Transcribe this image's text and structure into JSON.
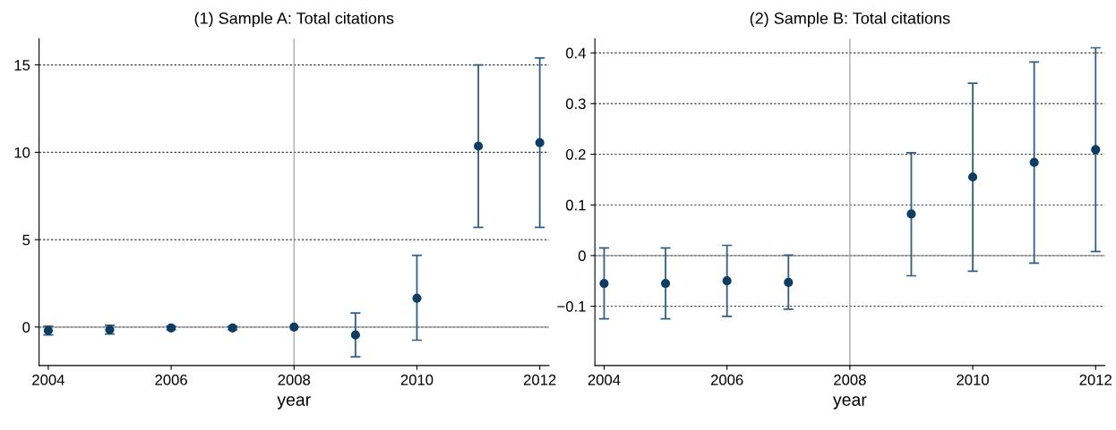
{
  "chart_data": [
    {
      "type": "scatter",
      "title": "(1) Sample A: Total citations",
      "xlabel": "year",
      "x": [
        2004,
        2005,
        2006,
        2007,
        2008,
        2009,
        2010,
        2011,
        2012
      ],
      "series": [
        {
          "color": "#0d3d63",
          "values": [
            -0.2,
            -0.15,
            -0.05,
            -0.05,
            0,
            -0.45,
            1.65,
            10.35,
            10.55
          ],
          "errors": [
            [
              -0.45,
              0.05
            ],
            [
              -0.4,
              0.1
            ],
            [
              -0.15,
              0.05
            ],
            [
              -0.15,
              0.05
            ],
            null,
            [
              -1.7,
              0.8
            ],
            [
              -0.75,
              4.1
            ],
            [
              5.7,
              15
            ],
            [
              5.7,
              15.4
            ]
          ]
        }
      ],
      "xlim": [
        2003.85,
        2012.15
      ],
      "xticks": [
        2004,
        2006,
        2008,
        2010,
        2012
      ],
      "ylim": [
        -2.2,
        16.5
      ],
      "yticks": [
        0,
        5,
        10,
        15
      ],
      "grid": "y",
      "marker": "circle",
      "ref_lines": [
        {
          "axis": "x",
          "value": 2008,
          "color": "#aaaaaa"
        },
        {
          "axis": "y",
          "value": 0,
          "color": "#999999"
        }
      ]
    },
    {
      "type": "scatter",
      "title": "(2) Sample B: Total citations",
      "xlabel": "year",
      "x": [
        2004,
        2005,
        2006,
        2007,
        2008,
        2009,
        2010,
        2011,
        2012
      ],
      "series": [
        {
          "color": "#0d3d63",
          "values": [
            -0.055,
            -0.055,
            -0.05,
            -0.053,
            null,
            0.082,
            0.155,
            0.184,
            0.209
          ],
          "errors": [
            [
              -0.125,
              0.015
            ],
            [
              -0.125,
              0.015
            ],
            [
              -0.12,
              0.02
            ],
            [
              -0.106,
              0.001
            ],
            null,
            [
              -0.04,
              0.203
            ],
            [
              -0.031,
              0.34
            ],
            [
              -0.015,
              0.382
            ],
            [
              0.008,
              0.41
            ]
          ]
        }
      ],
      "xlim": [
        2003.85,
        2012.15
      ],
      "xticks": [
        2004,
        2006,
        2008,
        2010,
        2012
      ],
      "ylim": [
        -0.217,
        0.428
      ],
      "yticks": [
        {
          "value": -0.1,
          "label": "−0.1"
        },
        0,
        0.1,
        0.2,
        0.3,
        0.4
      ],
      "grid": "y",
      "marker": "circle",
      "ref_lines": [
        {
          "axis": "x",
          "value": 2008,
          "color": "#aaaaaa"
        },
        {
          "axis": "y",
          "value": 0,
          "color": "#999999"
        }
      ]
    }
  ]
}
